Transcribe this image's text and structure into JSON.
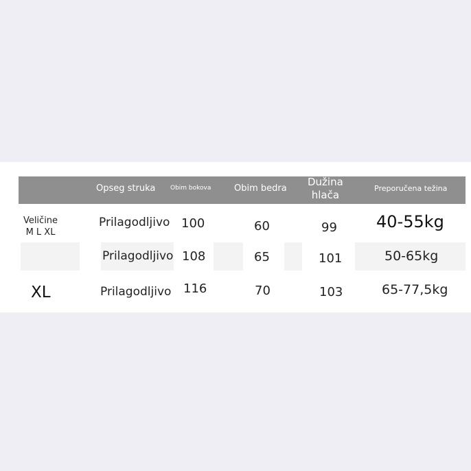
{
  "header": [
    "",
    "Opseg struka",
    "Obim bokova",
    "Obim bedra",
    "Dužina hlača",
    "Preporučena težina"
  ],
  "header_dl": [
    "Dužina",
    "hlača"
  ],
  "rows": [
    {
      "size": [
        "Veličine",
        "M L XL"
      ],
      "waist": "Prilagodljivo",
      "hip": "100",
      "thigh": "60",
      "length": "99",
      "weight": "40-55kg"
    },
    {
      "size": [
        ""
      ],
      "waist": "Prilagodljivo",
      "hip": "108",
      "thigh": "65",
      "length": "101",
      "weight": "50-65kg"
    },
    {
      "size": [
        "XL"
      ],
      "waist": "Prilagodljivo",
      "hip": "116",
      "thigh": "70",
      "length": "103",
      "weight": "65-77,5kg"
    }
  ],
  "colors": {
    "header_bg": "#8f8f8f",
    "page_bg": "#efeef4",
    "band_bg": "#ffffff",
    "cell_shade": "#f3f3f3"
  }
}
